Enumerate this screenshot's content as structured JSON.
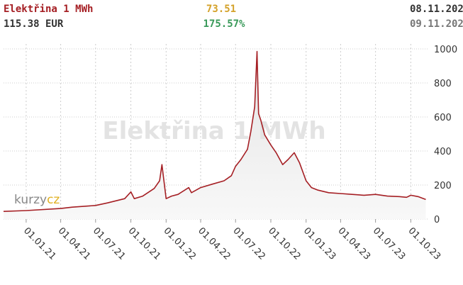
{
  "chart_data": {
    "type": "line",
    "title": "Elektřina 1 MWh",
    "price": "115.38 EUR",
    "change": "73.51",
    "change_percent": "175.57%",
    "date_from": "08.11.202",
    "date_to": "09.11.202",
    "watermark": "Elektřina 1 MWh",
    "logo": [
      "kurzy",
      "cz"
    ],
    "x": [
      "03.11.20",
      "01.01.21",
      "01.04.21",
      "01.05.21",
      "01.07.21",
      "01.08.21",
      "15.09.21",
      "01.10.21",
      "10.10.21",
      "01.11.21",
      "01.12.21",
      "15.12.21",
      "21.12.21",
      "24.12.21",
      "01.01.22",
      "15.01.22",
      "01.02.22",
      "01.03.22",
      "08.03.22",
      "01.04.22",
      "01.05.22",
      "01.06.22",
      "20.06.22",
      "01.07.22",
      "15.07.22",
      "01.08.22",
      "10.08.22",
      "20.08.22",
      "26.08.22",
      "30.08.22",
      "05.09.22",
      "15.09.22",
      "01.10.22",
      "15.10.22",
      "01.11.22",
      "15.11.22",
      "01.12.22",
      "15.12.22",
      "01.01.23",
      "15.01.23",
      "01.02.23",
      "01.03.23",
      "01.04.23",
      "01.05.23",
      "01.06.23",
      "01.07.23",
      "01.08.23",
      "01.09.23",
      "20.09.23",
      "01.10.23",
      "20.10.23",
      "09.11.23"
    ],
    "values": [
      45,
      50,
      62,
      70,
      80,
      95,
      120,
      160,
      120,
      135,
      180,
      225,
      320,
      265,
      120,
      135,
      145,
      185,
      155,
      185,
      205,
      225,
      255,
      310,
      350,
      410,
      515,
      660,
      985,
      620,
      580,
      495,
      435,
      390,
      320,
      350,
      390,
      330,
      225,
      185,
      170,
      155,
      150,
      145,
      140,
      145,
      135,
      132,
      128,
      140,
      132,
      115
    ],
    "color": "#a51f24",
    "xlim": [
      "03.11.20",
      "10.11.23"
    ],
    "xticks": [
      "01.01.21",
      "01.04.21",
      "01.07.21",
      "01.10.21",
      "01.01.22",
      "01.04.22",
      "01.07.22",
      "01.10.22",
      "01.01.23",
      "01.04.23",
      "01.07.23",
      "01.10.23"
    ],
    "ylim": [
      0,
      1000
    ],
    "yticks": [
      0,
      200,
      400,
      600,
      800,
      1000
    ],
    "grid": true
  }
}
